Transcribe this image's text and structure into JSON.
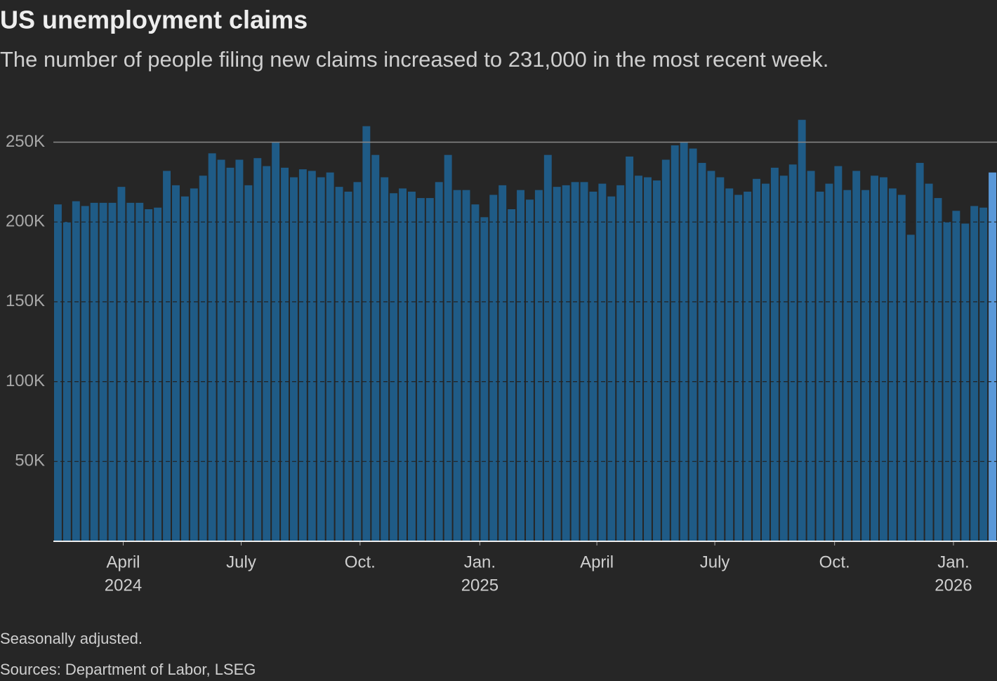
{
  "chart_data": {
    "type": "bar",
    "title": "US unemployment claims",
    "subtitle": "The number of people filing new claims increased to 231,000 in the most recent week.",
    "notes": [
      "Seasonally adjusted.",
      "Sources: Department of Labor, LSEG"
    ],
    "categories": [
      null,
      null,
      null,
      null,
      null,
      null,
      null,
      null,
      null,
      null,
      null,
      null,
      null,
      null,
      null,
      null,
      null,
      null,
      null,
      null,
      null,
      null,
      null,
      null,
      null,
      null,
      null,
      null,
      null,
      null,
      null,
      null,
      null,
      null,
      null,
      null,
      null,
      null,
      null,
      null,
      null,
      null,
      null,
      null,
      null,
      null,
      null,
      null,
      null,
      null,
      null,
      null,
      null,
      null,
      null,
      null,
      null,
      null,
      null,
      null,
      null,
      null,
      null,
      null,
      null,
      null,
      null,
      null,
      null,
      null,
      null,
      null,
      null,
      null,
      null,
      null,
      null,
      null,
      null,
      null,
      null,
      null,
      null,
      null,
      null,
      null,
      null,
      null,
      null,
      null,
      null,
      null,
      null,
      null,
      null,
      null,
      null,
      null,
      null,
      null,
      null,
      null,
      null,
      null
    ],
    "values": [
      211000,
      200000,
      213000,
      210000,
      212000,
      212000,
      212000,
      222000,
      212000,
      212000,
      208000,
      209000,
      232000,
      223000,
      216000,
      221000,
      229000,
      243000,
      239000,
      234000,
      239000,
      223000,
      240000,
      235000,
      250000,
      234000,
      228000,
      233000,
      232000,
      228000,
      231000,
      222000,
      219000,
      225000,
      260000,
      242000,
      228000,
      218000,
      221000,
      219000,
      215000,
      215000,
      225000,
      242000,
      220000,
      220000,
      211000,
      203000,
      217000,
      223000,
      208000,
      220000,
      214000,
      220000,
      242000,
      222000,
      223000,
      225000,
      225000,
      219000,
      224000,
      216000,
      223000,
      241000,
      229000,
      228000,
      226000,
      239000,
      248000,
      250000,
      246000,
      237000,
      232000,
      228000,
      221000,
      217000,
      219000,
      227000,
      224000,
      234000,
      229000,
      236000,
      264000,
      232000,
      219000,
      224000,
      235000,
      220000,
      232000,
      220000,
      229000,
      228000,
      221000,
      217000,
      192000,
      237000,
      224000,
      215000,
      200000,
      207000,
      199000,
      210000,
      209000,
      231000
    ],
    "color": "#1f5b86",
    "highlight_color": "#5a98d8",
    "ylim": [
      0,
      270000
    ],
    "yticks": [
      {
        "value": 50000,
        "label": "50K"
      },
      {
        "value": 100000,
        "label": "100K"
      },
      {
        "value": 150000,
        "label": "150K"
      },
      {
        "value": 200000,
        "label": "200K"
      },
      {
        "value": 250000,
        "label": "250K"
      }
    ],
    "xticks": [
      {
        "value": 7.7,
        "label": "April"
      },
      {
        "value": 20.7,
        "label": "July"
      },
      {
        "value": 33.8,
        "label": "Oct."
      },
      {
        "value": 47.0,
        "label": "Jan."
      },
      {
        "value": 59.9,
        "label": "April"
      },
      {
        "value": 72.9,
        "label": "July"
      },
      {
        "value": 86.1,
        "label": "Oct."
      },
      {
        "value": 99.2,
        "label": "Jan."
      }
    ],
    "year_labels": [
      {
        "value": 7.7,
        "label": "2024"
      },
      {
        "value": 47.0,
        "label": "2025"
      },
      {
        "value": 99.2,
        "label": "2026"
      }
    ],
    "grid": true
  }
}
